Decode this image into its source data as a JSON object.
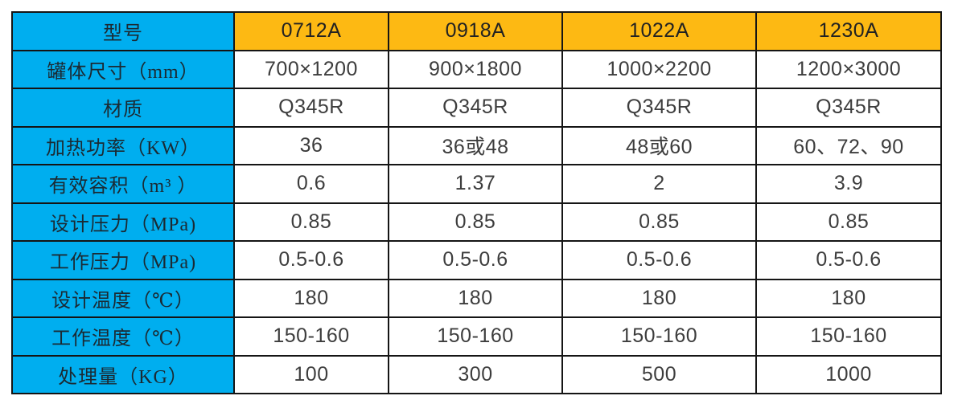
{
  "table": {
    "title_semantic": "equipment-specification-table",
    "colors": {
      "label_column_bg": "#00AEEF",
      "model_header_bg": "#FDB913",
      "border": "#151515",
      "value_text": "#3d3d3d",
      "label_text": "#1b2a33"
    },
    "header": {
      "label": "型号",
      "models": [
        "0712A",
        "0918A",
        "1022A",
        "1230A"
      ]
    },
    "rows": [
      {
        "label": "罐体尺寸（mm）",
        "values": [
          "700×1200",
          "900×1800",
          "1000×2200",
          "1200×3000"
        ]
      },
      {
        "label": "材质",
        "values": [
          "Q345R",
          "Q345R",
          "Q345R",
          "Q345R"
        ]
      },
      {
        "label": "加热功率（KW）",
        "values": [
          "36",
          "36或48",
          "48或60",
          "60、72、90"
        ]
      },
      {
        "label": "有效容积（m³ ）",
        "values": [
          "0.6",
          "1.37",
          "2",
          "3.9"
        ]
      },
      {
        "label": "设计压力（MPa)",
        "values": [
          "0.85",
          "0.85",
          "0.85",
          "0.85"
        ]
      },
      {
        "label": "工作压力（MPa)",
        "values": [
          "0.5-0.6",
          "0.5-0.6",
          "0.5-0.6",
          "0.5-0.6"
        ]
      },
      {
        "label": "设计温度（℃）",
        "values": [
          "180",
          "180",
          "180",
          "180"
        ]
      },
      {
        "label": "工作温度（℃）",
        "values": [
          "150-160",
          "150-160",
          "150-160",
          "150-160"
        ]
      },
      {
        "label": "处理量（KG）",
        "values": [
          "100",
          "300",
          "500",
          "1000"
        ]
      }
    ]
  },
  "chart_data": {
    "type": "table",
    "columns": [
      "型号",
      "0712A",
      "0918A",
      "1022A",
      "1230A"
    ],
    "rows": [
      [
        "罐体尺寸（mm）",
        "700×1200",
        "900×1800",
        "1000×2200",
        "1200×3000"
      ],
      [
        "材质",
        "Q345R",
        "Q345R",
        "Q345R",
        "Q345R"
      ],
      [
        "加热功率（KW）",
        "36",
        "36或48",
        "48或60",
        "60、72、90"
      ],
      [
        "有效容积（m³ ）",
        "0.6",
        "1.37",
        "2",
        "3.9"
      ],
      [
        "设计压力（MPa)",
        "0.85",
        "0.85",
        "0.85",
        "0.85"
      ],
      [
        "工作压力（MPa)",
        "0.5-0.6",
        "0.5-0.6",
        "0.5-0.6",
        "0.5-0.6"
      ],
      [
        "设计温度（℃）",
        "180",
        "180",
        "180",
        "180"
      ],
      [
        "工作温度（℃）",
        "150-160",
        "150-160",
        "150-160",
        "150-160"
      ],
      [
        "处理量（KG）",
        "100",
        "300",
        "500",
        "1000"
      ]
    ]
  }
}
